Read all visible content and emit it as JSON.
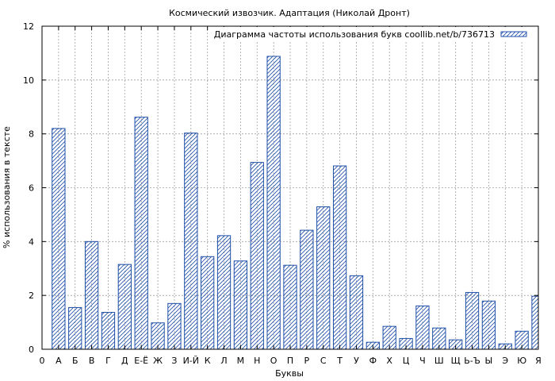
{
  "chart_data": {
    "type": "bar",
    "title": "Космический извозчик. Адаптация (Николай Дронт)",
    "xlabel": "Буквы",
    "ylabel": "% использования в тексте",
    "ylim": [
      0,
      12
    ],
    "yticks": [
      "0",
      "2",
      "4",
      "6",
      "8",
      "10",
      "12"
    ],
    "x_start_label": "0",
    "grid": true,
    "legend_position": "top-right",
    "categories": [
      "А",
      "Б",
      "В",
      "Г",
      "Д",
      "Е-Ё",
      "Ж",
      "З",
      "И-Й",
      "К",
      "Л",
      "М",
      "Н",
      "О",
      "П",
      "Р",
      "С",
      "Т",
      "У",
      "Ф",
      "Х",
      "Ц",
      "Ч",
      "Ш",
      "Щ",
      "Ь-Ъ",
      "Ы",
      "Э",
      "Ю",
      "Я"
    ],
    "series": [
      {
        "name": "Диаграмма частоты использования букв coollib.net/b/736713",
        "color": "#1f4fa8",
        "values": [
          8.2,
          1.55,
          4.0,
          1.37,
          3.15,
          8.62,
          0.98,
          1.7,
          8.03,
          3.44,
          4.22,
          3.28,
          6.94,
          10.88,
          3.12,
          4.42,
          5.29,
          6.81,
          2.73,
          0.26,
          0.85,
          0.4,
          1.61,
          0.79,
          0.35,
          2.11,
          1.79,
          0.2,
          0.67,
          1.97
        ]
      }
    ]
  }
}
